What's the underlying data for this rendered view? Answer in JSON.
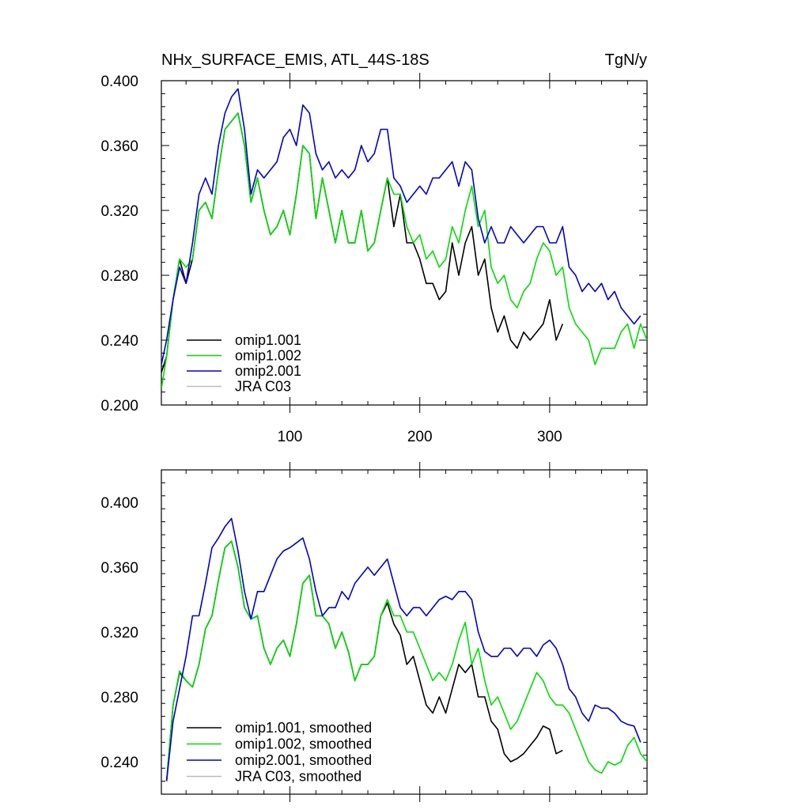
{
  "header": {
    "title": "NHx_SURFACE_EMIS, ATL_44S-18S",
    "units": "TgN/y"
  },
  "chart_data": [
    {
      "type": "line",
      "panel": "top",
      "xlim": [
        1,
        375
      ],
      "ylim": [
        0.2,
        0.4
      ],
      "xticks": [
        100,
        200,
        300
      ],
      "xtick_labels": [
        "100",
        "200",
        "300"
      ],
      "yticks": [
        0.2,
        0.24,
        0.28,
        0.32,
        0.36,
        0.4
      ],
      "ytick_labels": [
        "0.200",
        "0.240",
        "0.280",
        "0.320",
        "0.360",
        "0.400"
      ],
      "legend_position": "bottom-left",
      "series": [
        {
          "name": "omip1.001",
          "color": "#000000",
          "x": [
            1,
            5,
            10,
            15,
            20,
            25,
            30,
            35,
            40,
            45,
            50,
            55,
            60,
            65,
            70,
            75,
            80,
            85,
            90,
            95,
            100,
            105,
            110,
            115,
            120,
            125,
            130,
            135,
            140,
            145,
            150,
            155,
            160,
            165,
            170,
            175,
            180,
            185,
            190,
            195,
            200,
            205,
            210,
            215,
            220,
            225,
            230,
            235,
            240,
            245,
            250,
            255,
            260,
            265,
            270,
            275,
            280,
            285,
            290,
            295,
            300,
            305,
            310
          ],
          "y": [
            0.22,
            0.23,
            0.265,
            0.29,
            0.275,
            0.29,
            0.32,
            0.325,
            0.315,
            0.345,
            0.37,
            0.375,
            0.38,
            0.36,
            0.325,
            0.34,
            0.32,
            0.305,
            0.31,
            0.32,
            0.305,
            0.33,
            0.36,
            0.355,
            0.315,
            0.34,
            0.32,
            0.3,
            0.32,
            0.3,
            0.3,
            0.32,
            0.295,
            0.3,
            0.32,
            0.34,
            0.31,
            0.33,
            0.3,
            0.3,
            0.29,
            0.275,
            0.275,
            0.265,
            0.27,
            0.3,
            0.28,
            0.3,
            0.31,
            0.28,
            0.29,
            0.26,
            0.245,
            0.255,
            0.24,
            0.235,
            0.245,
            0.24,
            0.245,
            0.25,
            0.265,
            0.24,
            0.25
          ]
        },
        {
          "name": "omip1.002",
          "color": "#00dd00",
          "x": [
            1,
            5,
            10,
            15,
            20,
            25,
            30,
            35,
            40,
            45,
            50,
            55,
            60,
            65,
            70,
            75,
            80,
            85,
            90,
            95,
            100,
            105,
            110,
            115,
            120,
            125,
            130,
            135,
            140,
            145,
            150,
            155,
            160,
            165,
            170,
            175,
            180,
            185,
            190,
            195,
            200,
            205,
            210,
            215,
            220,
            225,
            230,
            235,
            240,
            245,
            250,
            255,
            260,
            265,
            270,
            275,
            280,
            285,
            290,
            295,
            300,
            305,
            310,
            315,
            320,
            325,
            330,
            335,
            340,
            345,
            350,
            355,
            360,
            365,
            370,
            375
          ],
          "y": [
            0.21,
            0.23,
            0.265,
            0.29,
            0.285,
            0.29,
            0.32,
            0.325,
            0.315,
            0.345,
            0.37,
            0.375,
            0.38,
            0.36,
            0.325,
            0.34,
            0.32,
            0.305,
            0.31,
            0.32,
            0.305,
            0.33,
            0.36,
            0.355,
            0.315,
            0.34,
            0.32,
            0.3,
            0.32,
            0.3,
            0.3,
            0.32,
            0.295,
            0.3,
            0.32,
            0.34,
            0.33,
            0.33,
            0.31,
            0.3,
            0.305,
            0.29,
            0.295,
            0.285,
            0.29,
            0.31,
            0.3,
            0.32,
            0.335,
            0.31,
            0.32,
            0.285,
            0.275,
            0.28,
            0.265,
            0.26,
            0.27,
            0.275,
            0.29,
            0.3,
            0.295,
            0.28,
            0.285,
            0.26,
            0.25,
            0.245,
            0.24,
            0.225,
            0.235,
            0.235,
            0.235,
            0.245,
            0.25,
            0.235,
            0.25,
            0.24
          ]
        },
        {
          "name": "omip2.001",
          "color": "#0000cc",
          "x": [
            1,
            5,
            10,
            15,
            20,
            25,
            30,
            35,
            40,
            45,
            50,
            55,
            60,
            65,
            70,
            75,
            80,
            85,
            90,
            95,
            100,
            105,
            110,
            115,
            120,
            125,
            130,
            135,
            140,
            145,
            150,
            155,
            160,
            165,
            170,
            175,
            180,
            185,
            190,
            195,
            200,
            205,
            210,
            215,
            220,
            225,
            230,
            235,
            240,
            245,
            250,
            255,
            260,
            265,
            270,
            275,
            280,
            285,
            290,
            295,
            300,
            305,
            310,
            315,
            320,
            325,
            330,
            335,
            340,
            345,
            350,
            355,
            360,
            365,
            370
          ],
          "y": [
            0.225,
            0.24,
            0.265,
            0.285,
            0.275,
            0.3,
            0.33,
            0.34,
            0.33,
            0.36,
            0.38,
            0.39,
            0.395,
            0.37,
            0.33,
            0.345,
            0.34,
            0.345,
            0.35,
            0.365,
            0.37,
            0.36,
            0.385,
            0.38,
            0.355,
            0.345,
            0.35,
            0.34,
            0.345,
            0.34,
            0.345,
            0.36,
            0.35,
            0.355,
            0.37,
            0.37,
            0.34,
            0.335,
            0.325,
            0.33,
            0.335,
            0.33,
            0.34,
            0.34,
            0.345,
            0.35,
            0.335,
            0.35,
            0.345,
            0.315,
            0.3,
            0.31,
            0.3,
            0.3,
            0.31,
            0.305,
            0.3,
            0.305,
            0.31,
            0.31,
            0.3,
            0.3,
            0.31,
            0.285,
            0.28,
            0.27,
            0.275,
            0.27,
            0.275,
            0.265,
            0.27,
            0.26,
            0.255,
            0.25,
            0.255
          ]
        },
        {
          "name": "JRA C03",
          "color": "#bbbbbb",
          "x": [],
          "y": []
        }
      ]
    },
    {
      "type": "line",
      "panel": "bottom",
      "xlim": [
        1,
        375
      ],
      "ylim": [
        0.22,
        0.42
      ],
      "xticks": [
        100,
        200,
        300
      ],
      "xtick_labels": [],
      "yticks": [
        0.24,
        0.28,
        0.32,
        0.36,
        0.4
      ],
      "ytick_labels": [
        "0.240",
        "0.280",
        "0.320",
        "0.360",
        "0.400"
      ],
      "legend_position": "bottom-left",
      "series": [
        {
          "name": "omip1.001, smoothed",
          "color": "#000000",
          "x": [
            5,
            10,
            15,
            20,
            25,
            30,
            35,
            40,
            45,
            50,
            55,
            60,
            65,
            70,
            75,
            80,
            85,
            90,
            95,
            100,
            105,
            110,
            115,
            120,
            125,
            130,
            135,
            140,
            145,
            150,
            155,
            160,
            165,
            170,
            175,
            180,
            185,
            190,
            195,
            200,
            205,
            210,
            215,
            220,
            225,
            230,
            235,
            240,
            245,
            250,
            255,
            260,
            265,
            270,
            275,
            280,
            285,
            290,
            295,
            300,
            305,
            310
          ],
          "y": [
            0.228,
            0.275,
            0.295,
            0.29,
            0.286,
            0.3,
            0.322,
            0.33,
            0.352,
            0.372,
            0.376,
            0.36,
            0.335,
            0.328,
            0.33,
            0.31,
            0.3,
            0.31,
            0.315,
            0.305,
            0.325,
            0.35,
            0.355,
            0.33,
            0.33,
            0.325,
            0.31,
            0.32,
            0.308,
            0.29,
            0.3,
            0.3,
            0.305,
            0.33,
            0.338,
            0.325,
            0.318,
            0.3,
            0.305,
            0.29,
            0.275,
            0.27,
            0.28,
            0.27,
            0.285,
            0.3,
            0.295,
            0.3,
            0.28,
            0.28,
            0.265,
            0.26,
            0.245,
            0.24,
            0.242,
            0.245,
            0.25,
            0.255,
            0.262,
            0.26,
            0.245,
            0.247
          ]
        },
        {
          "name": "omip1.002, smoothed",
          "color": "#00dd00",
          "x": [
            5,
            10,
            15,
            20,
            25,
            30,
            35,
            40,
            45,
            50,
            55,
            60,
            65,
            70,
            75,
            80,
            85,
            90,
            95,
            100,
            105,
            110,
            115,
            120,
            125,
            130,
            135,
            140,
            145,
            150,
            155,
            160,
            165,
            170,
            175,
            180,
            185,
            190,
            195,
            200,
            205,
            210,
            215,
            220,
            225,
            230,
            235,
            240,
            245,
            250,
            255,
            260,
            265,
            270,
            275,
            280,
            285,
            290,
            295,
            300,
            305,
            310,
            315,
            320,
            325,
            330,
            335,
            340,
            345,
            350,
            355,
            360,
            365,
            370,
            375
          ],
          "y": [
            0.228,
            0.275,
            0.296,
            0.29,
            0.286,
            0.3,
            0.322,
            0.33,
            0.352,
            0.372,
            0.376,
            0.36,
            0.335,
            0.328,
            0.33,
            0.31,
            0.3,
            0.31,
            0.315,
            0.305,
            0.325,
            0.35,
            0.355,
            0.33,
            0.33,
            0.325,
            0.31,
            0.32,
            0.308,
            0.29,
            0.3,
            0.3,
            0.305,
            0.33,
            0.34,
            0.33,
            0.33,
            0.32,
            0.32,
            0.31,
            0.3,
            0.29,
            0.295,
            0.29,
            0.3,
            0.315,
            0.326,
            0.3,
            0.31,
            0.29,
            0.275,
            0.28,
            0.27,
            0.26,
            0.265,
            0.275,
            0.285,
            0.295,
            0.29,
            0.28,
            0.275,
            0.275,
            0.27,
            0.26,
            0.25,
            0.24,
            0.235,
            0.233,
            0.24,
            0.238,
            0.24,
            0.25,
            0.255,
            0.245,
            0.24
          ]
        },
        {
          "name": "omip2.001, smoothed",
          "color": "#0000cc",
          "x": [
            5,
            10,
            15,
            20,
            25,
            30,
            35,
            40,
            45,
            50,
            55,
            60,
            65,
            70,
            75,
            80,
            85,
            90,
            95,
            100,
            105,
            110,
            115,
            120,
            125,
            130,
            135,
            140,
            145,
            150,
            155,
            160,
            165,
            170,
            175,
            180,
            185,
            190,
            195,
            200,
            205,
            210,
            215,
            220,
            225,
            230,
            235,
            240,
            245,
            250,
            255,
            260,
            265,
            270,
            275,
            280,
            285,
            290,
            295,
            300,
            305,
            310,
            315,
            320,
            325,
            330,
            335,
            340,
            345,
            350,
            355,
            360,
            365,
            370
          ],
          "y": [
            0.228,
            0.265,
            0.285,
            0.305,
            0.33,
            0.33,
            0.35,
            0.372,
            0.378,
            0.385,
            0.39,
            0.37,
            0.345,
            0.328,
            0.345,
            0.345,
            0.355,
            0.365,
            0.37,
            0.372,
            0.375,
            0.378,
            0.365,
            0.345,
            0.33,
            0.335,
            0.335,
            0.345,
            0.34,
            0.35,
            0.355,
            0.36,
            0.355,
            0.36,
            0.365,
            0.35,
            0.335,
            0.33,
            0.335,
            0.335,
            0.33,
            0.335,
            0.34,
            0.342,
            0.34,
            0.345,
            0.345,
            0.34,
            0.32,
            0.308,
            0.305,
            0.305,
            0.31,
            0.31,
            0.305,
            0.31,
            0.31,
            0.305,
            0.312,
            0.315,
            0.31,
            0.3,
            0.285,
            0.28,
            0.27,
            0.265,
            0.275,
            0.273,
            0.273,
            0.27,
            0.265,
            0.263,
            0.262,
            0.252
          ]
        },
        {
          "name": "JRA C03, smoothed",
          "color": "#bbbbbb",
          "x": [],
          "y": []
        }
      ]
    }
  ]
}
